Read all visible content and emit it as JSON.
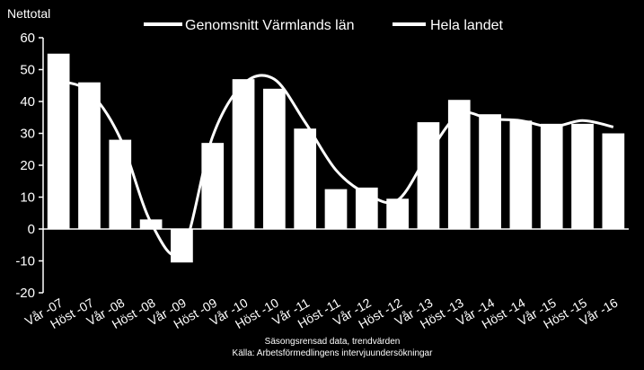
{
  "chart_data": {
    "type": "bar",
    "ylabel": "Nettotal",
    "ylim": [
      -20,
      60
    ],
    "yticks": [
      -20,
      -10,
      0,
      10,
      20,
      30,
      40,
      50,
      60
    ],
    "categories": [
      "Vår -07",
      "Höst -07",
      "Vår -08",
      "Höst -08",
      "Vår -09",
      "Höst -09",
      "Vår -10",
      "Höst -10",
      "Vår -11",
      "Höst -11",
      "Vår -12",
      "Höst -12",
      "Vår -13",
      "Höst -13",
      "Vår -14",
      "Höst -14",
      "Vår -15",
      "Höst -15",
      "Vår -16"
    ],
    "series": [
      {
        "name": "Genomsnitt Värmlands  län",
        "kind": "bar",
        "values": [
          55,
          46,
          28,
          3,
          -10.5,
          27,
          47,
          44,
          31.5,
          12.5,
          13,
          9.5,
          33.5,
          40.5,
          36,
          34,
          33,
          33,
          30
        ]
      },
      {
        "name": "Hela landet",
        "kind": "line",
        "values": [
          46.5,
          43,
          28.5,
          2,
          -7,
          29,
          45.5,
          47,
          33.5,
          18.5,
          11,
          9,
          23.5,
          36,
          34.5,
          34,
          32,
          34,
          32
        ]
      }
    ],
    "colors": {
      "background": "#000000",
      "bars": "#ffffff",
      "line": "#ffffff",
      "text": "#ffffff"
    },
    "grid": false,
    "legend": "top",
    "source_lines": [
      "Säsongsrensad  data, trendvärden",
      "Källa: Arbetsförmedlingens intervjuundersökningar"
    ]
  }
}
